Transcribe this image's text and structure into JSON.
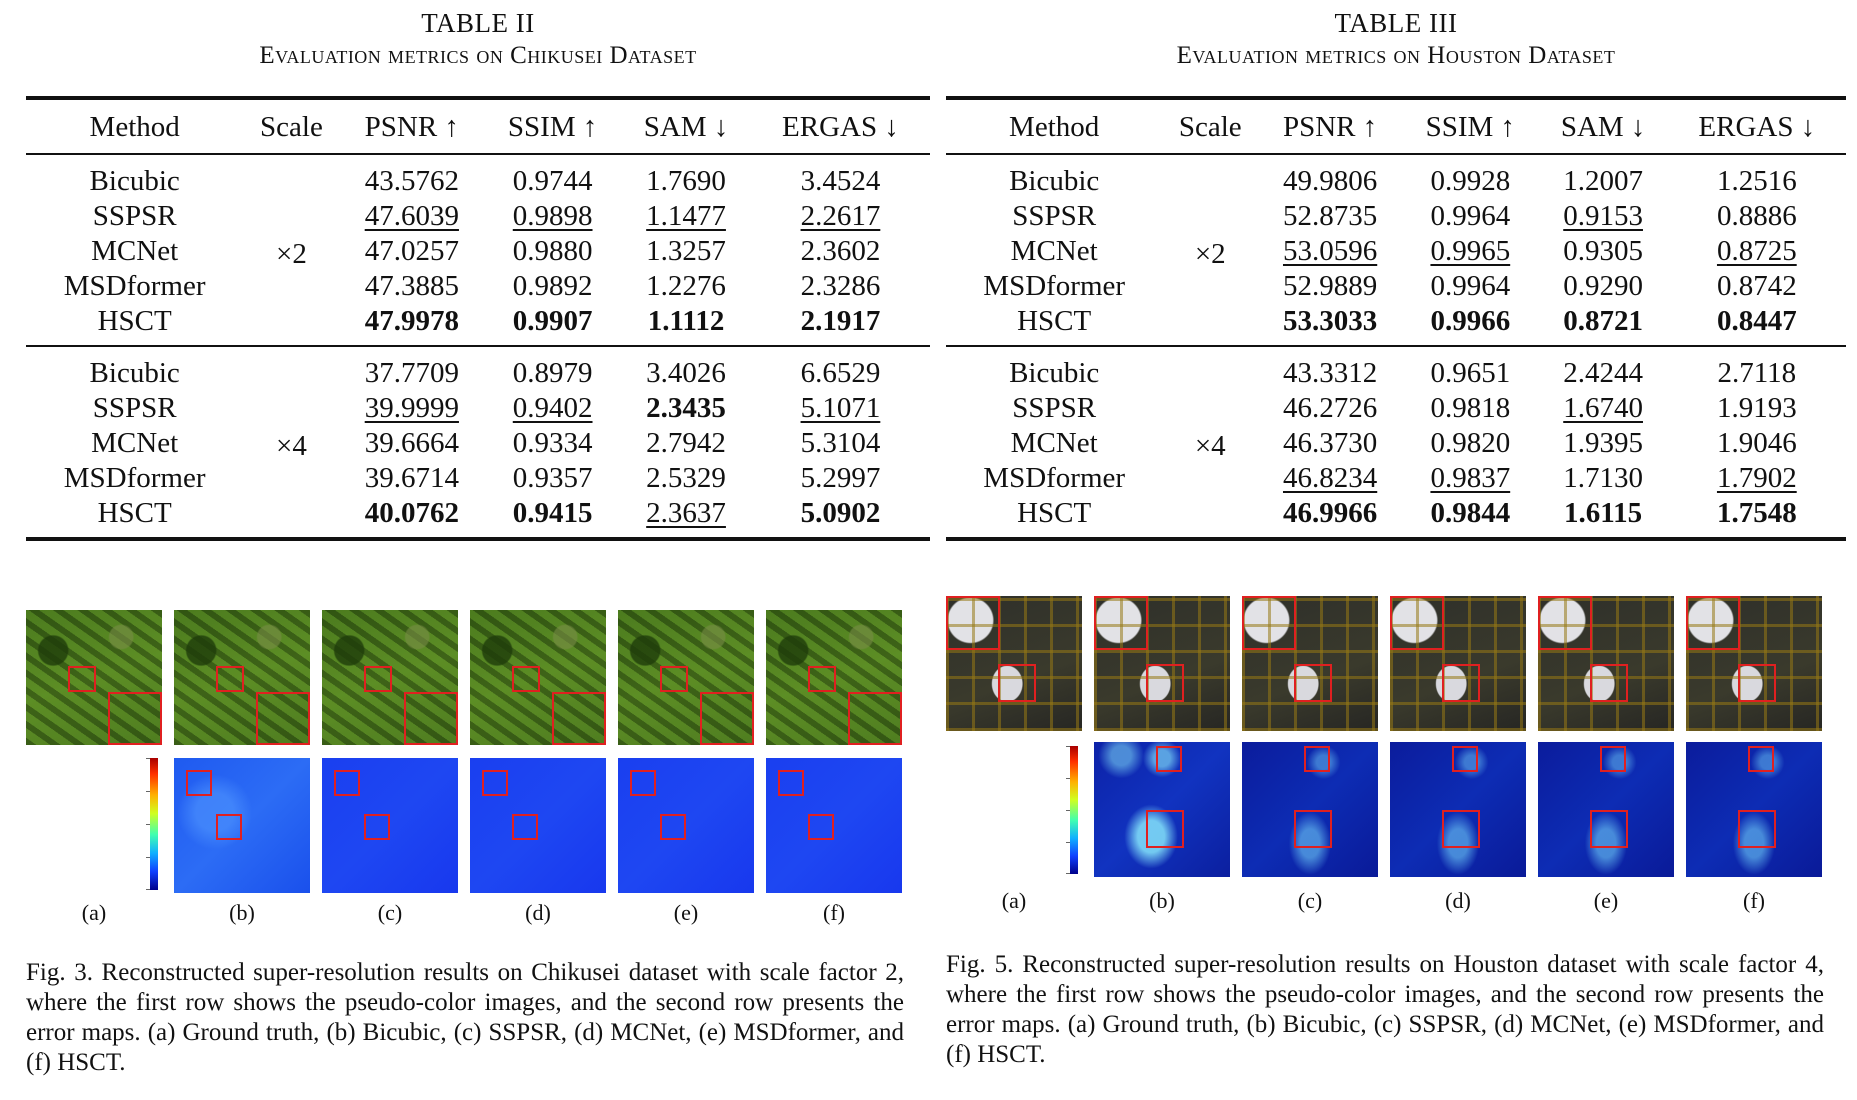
{
  "table2": {
    "number": "TABLE II",
    "title": "Evaluation metrics on Chikusei Dataset",
    "headers": [
      "Method",
      "Scale",
      "PSNR ↑",
      "SSIM ↑",
      "SAM ↓",
      "ERGAS ↓"
    ],
    "groups": [
      {
        "scale": "×2",
        "rows": [
          {
            "method": "Bicubic",
            "psnr": "43.5762",
            "ssim": "0.9744",
            "sam": "1.7690",
            "ergas": "3.4524"
          },
          {
            "method": "SSPSR",
            "psnr": "47.6039",
            "ssim": "0.9898",
            "sam": "1.1477",
            "ergas": "2.2617"
          },
          {
            "method": "MCNet",
            "psnr": "47.0257",
            "ssim": "0.9880",
            "sam": "1.3257",
            "ergas": "2.3602"
          },
          {
            "method": "MSDformer",
            "psnr": "47.3885",
            "ssim": "0.9892",
            "sam": "1.2276",
            "ergas": "2.3286"
          },
          {
            "method": "HSCT",
            "psnr": "47.9978",
            "ssim": "0.9907",
            "sam": "1.1112",
            "ergas": "2.1917"
          }
        ]
      },
      {
        "scale": "×4",
        "rows": [
          {
            "method": "Bicubic",
            "psnr": "37.7709",
            "ssim": "0.8979",
            "sam": "3.4026",
            "ergas": "6.6529"
          },
          {
            "method": "SSPSR",
            "psnr": "39.9999",
            "ssim": "0.9402",
            "sam": "2.3435",
            "ergas": "5.1071"
          },
          {
            "method": "MCNet",
            "psnr": "39.6664",
            "ssim": "0.9334",
            "sam": "2.7942",
            "ergas": "5.3104"
          },
          {
            "method": "MSDformer",
            "psnr": "39.6714",
            "ssim": "0.9357",
            "sam": "2.5329",
            "ergas": "5.2997"
          },
          {
            "method": "HSCT",
            "psnr": "40.0762",
            "ssim": "0.9415",
            "sam": "2.3637",
            "ergas": "5.0902"
          }
        ]
      }
    ]
  },
  "table3": {
    "number": "TABLE III",
    "title": "Evaluation metrics on Houston Dataset",
    "headers": [
      "Method",
      "Scale",
      "PSNR ↑",
      "SSIM ↑",
      "SAM ↓",
      "ERGAS ↓"
    ],
    "groups": [
      {
        "scale": "×2",
        "rows": [
          {
            "method": "Bicubic",
            "psnr": "49.9806",
            "ssim": "0.9928",
            "sam": "1.2007",
            "ergas": "1.2516"
          },
          {
            "method": "SSPSR",
            "psnr": "52.8735",
            "ssim": "0.9964",
            "sam": "0.9153",
            "ergas": "0.8886"
          },
          {
            "method": "MCNet",
            "psnr": "53.0596",
            "ssim": "0.9965",
            "sam": "0.9305",
            "ergas": "0.8725"
          },
          {
            "method": "MSDformer",
            "psnr": "52.9889",
            "ssim": "0.9964",
            "sam": "0.9290",
            "ergas": "0.8742"
          },
          {
            "method": "HSCT",
            "psnr": "53.3033",
            "ssim": "0.9966",
            "sam": "0.8721",
            "ergas": "0.8447"
          }
        ]
      },
      {
        "scale": "×4",
        "rows": [
          {
            "method": "Bicubic",
            "psnr": "43.3312",
            "ssim": "0.9651",
            "sam": "2.4244",
            "ergas": "2.7118"
          },
          {
            "method": "SSPSR",
            "psnr": "46.2726",
            "ssim": "0.9818",
            "sam": "1.6740",
            "ergas": "1.9193"
          },
          {
            "method": "MCNet",
            "psnr": "46.3730",
            "ssim": "0.9820",
            "sam": "1.9395",
            "ergas": "1.9046"
          },
          {
            "method": "MSDformer",
            "psnr": "46.8234",
            "ssim": "0.9837",
            "sam": "1.7130",
            "ergas": "1.7902"
          },
          {
            "method": "HSCT",
            "psnr": "46.9966",
            "ssim": "0.9844",
            "sam": "1.6115",
            "ergas": "1.7548"
          }
        ]
      }
    ]
  },
  "figure3": {
    "sublabels": [
      "(a)",
      "(b)",
      "(c)",
      "(d)",
      "(e)",
      "(f)"
    ],
    "caption": "Fig. 3.  Reconstructed super-resolution results on Chikusei dataset with scale factor 2, where the first row shows the pseudo-color images, and the second row presents the error maps. (a) Ground truth, (b) Bicubic, (c) SSPSR, (d) MCNet, (e) MSDformer, and (f) HSCT."
  },
  "figure5": {
    "sublabels": [
      "(a)",
      "(b)",
      "(c)",
      "(d)",
      "(e)",
      "(f)"
    ],
    "caption": "Fig. 5.  Reconstructed super-resolution results on Houston dataset with scale factor 4, where the first row shows the pseudo-color images, and the second row presents the error maps. (a) Ground truth, (b) Bicubic, (c) SSPSR, (d) MCNet, (e) MSDformer, and (f) HSCT."
  }
}
